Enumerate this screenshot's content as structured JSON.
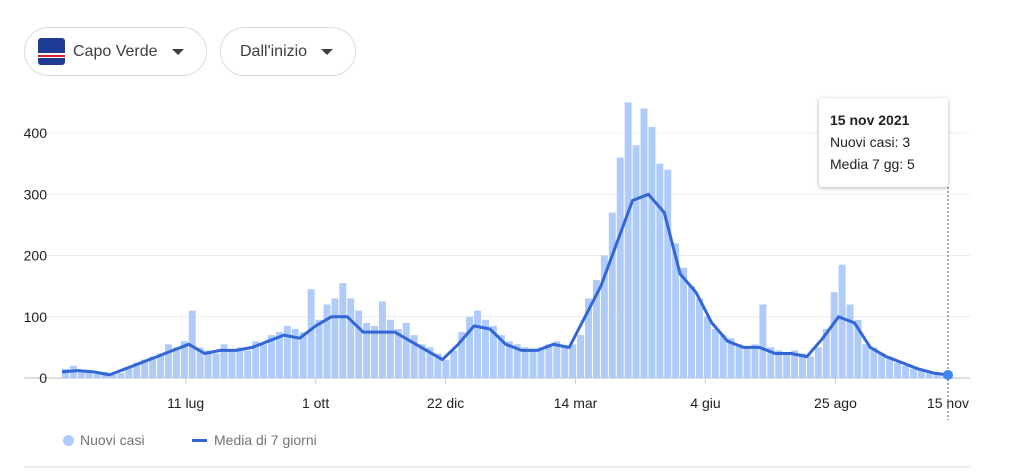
{
  "filters": {
    "country": {
      "label": "Capo Verde",
      "flag_icon": "cape-verde-flag"
    },
    "range": {
      "label": "Dall'inizio"
    }
  },
  "tooltip": {
    "date": "15 nov 2021",
    "new_cases": "Nuovi casi: 3",
    "avg": "Media 7 gg: 5"
  },
  "chart_data": {
    "type": "bar+line",
    "title": "",
    "xlabel": "",
    "ylabel": "",
    "ylim": [
      0,
      450
    ],
    "yticks": [
      0,
      100,
      200,
      300,
      400
    ],
    "grid": true,
    "x_domain_days": [
      0,
      559
    ],
    "xticks": [
      {
        "day": 78,
        "label": "11 lug"
      },
      {
        "day": 160,
        "label": "1 ott"
      },
      {
        "day": 242,
        "label": "22 dic"
      },
      {
        "day": 324,
        "label": "14 mar"
      },
      {
        "day": 406,
        "label": "4 giu"
      },
      {
        "day": 488,
        "label": "25 ago"
      },
      {
        "day": 559,
        "label": "15 nov"
      }
    ],
    "legend": {
      "placement": "bottom-left",
      "entries": [
        "Nuovi casi",
        "Media di 7 giorni"
      ]
    },
    "colors": {
      "bars": "#aecbfa",
      "line": "#3367d6"
    },
    "series": [
      {
        "name": "Nuovi casi",
        "type": "bar",
        "x_step_days": 5,
        "values": [
          15,
          20,
          10,
          12,
          8,
          10,
          5,
          8,
          18,
          25,
          30,
          35,
          40,
          55,
          50,
          60,
          110,
          50,
          45,
          40,
          55,
          45,
          50,
          45,
          60,
          55,
          70,
          75,
          85,
          80,
          75,
          145,
          95,
          120,
          130,
          155,
          130,
          110,
          90,
          85,
          125,
          95,
          80,
          90,
          70,
          55,
          50,
          40,
          30,
          45,
          75,
          100,
          110,
          95,
          85,
          70,
          60,
          55,
          50,
          48,
          50,
          55,
          60,
          50,
          55,
          70,
          130,
          160,
          200,
          270,
          360,
          450,
          380,
          440,
          410,
          350,
          340,
          220,
          180,
          150,
          130,
          100,
          80,
          70,
          65,
          55,
          50,
          55,
          120,
          50,
          45,
          40,
          45,
          40,
          35,
          50,
          80,
          140,
          185,
          120,
          95,
          55,
          50,
          40,
          35,
          25,
          20,
          15,
          12,
          10,
          6,
          3
        ]
      },
      {
        "name": "Media di 7 giorni",
        "type": "line",
        "x": [
          0,
          10,
          20,
          30,
          40,
          50,
          60,
          70,
          80,
          90,
          100,
          110,
          120,
          130,
          140,
          150,
          160,
          170,
          180,
          190,
          200,
          210,
          220,
          230,
          240,
          250,
          260,
          270,
          280,
          290,
          300,
          310,
          320,
          330,
          340,
          350,
          360,
          370,
          380,
          390,
          400,
          410,
          420,
          430,
          440,
          450,
          460,
          470,
          480,
          490,
          500,
          510,
          520,
          530,
          540,
          550,
          559
        ],
        "values": [
          10,
          12,
          10,
          5,
          15,
          25,
          35,
          45,
          55,
          40,
          45,
          45,
          50,
          60,
          70,
          65,
          85,
          100,
          100,
          75,
          75,
          75,
          60,
          45,
          30,
          55,
          85,
          80,
          55,
          45,
          45,
          55,
          50,
          100,
          150,
          220,
          290,
          300,
          270,
          170,
          140,
          90,
          60,
          50,
          50,
          40,
          40,
          35,
          65,
          100,
          90,
          50,
          35,
          25,
          15,
          8,
          5
        ]
      }
    ]
  },
  "legend": {
    "new_cases": "Nuovi casi",
    "avg": "Media di 7 giorni"
  }
}
